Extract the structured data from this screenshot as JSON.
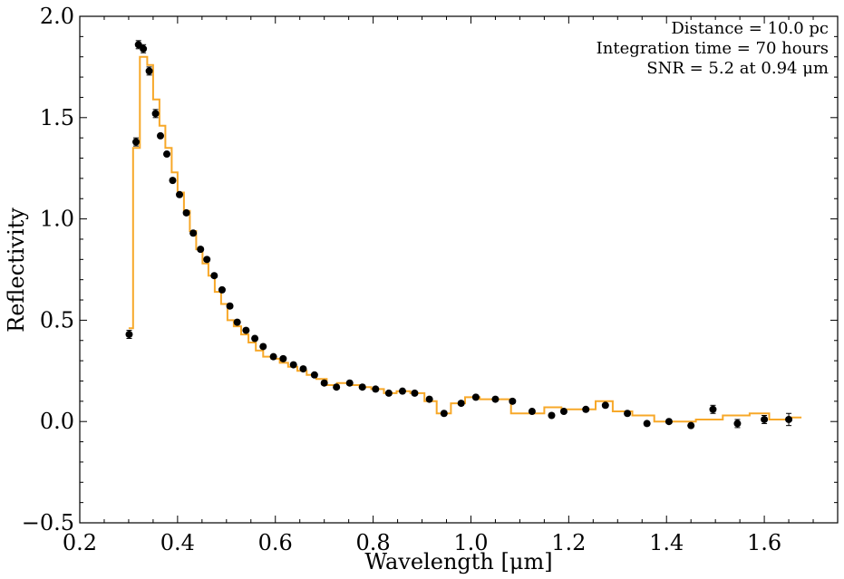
{
  "chart_data": {
    "type": "line",
    "title": "",
    "xlabel": "Wavelength [μm]",
    "ylabel": "Reflectivity",
    "xlim": [
      0.2,
      1.75
    ],
    "ylim": [
      -0.5,
      2.0
    ],
    "grid": false,
    "x_ticks": [
      0.2,
      0.4,
      0.6,
      0.8,
      1.0,
      1.2,
      1.4,
      1.6
    ],
    "x_tick_labels": [
      "0.2",
      "0.4",
      "0.6",
      "0.8",
      "1.0",
      "1.2",
      "1.4",
      "1.6"
    ],
    "y_ticks": [
      -0.5,
      0.0,
      0.5,
      1.0,
      1.5,
      2.0
    ],
    "y_tick_labels": [
      "−0.5",
      "0.0",
      "0.5",
      "1.0",
      "1.5",
      "2.0"
    ],
    "annotations": [
      "Distance = 10.0 pc",
      "Integration time = 70 hours",
      "SNR = 5.2 at 0.94 μm"
    ],
    "series": [
      {
        "style": "step",
        "color": "#f7a829",
        "x": [
          0.3,
          0.309,
          0.323,
          0.338,
          0.35,
          0.363,
          0.375,
          0.388,
          0.4,
          0.413,
          0.425,
          0.438,
          0.451,
          0.463,
          0.476,
          0.489,
          0.502,
          0.515,
          0.53,
          0.545,
          0.56,
          0.575,
          0.592,
          0.609,
          0.626,
          0.645,
          0.664,
          0.684,
          0.705,
          0.726,
          0.749,
          0.772,
          0.796,
          0.822,
          0.848,
          0.876,
          0.905,
          0.93,
          0.959,
          0.988,
          1.018,
          1.05,
          1.082,
          1.115,
          1.15,
          1.185,
          1.22,
          1.255,
          1.29,
          1.33,
          1.375,
          1.415,
          1.46,
          1.515,
          1.57,
          1.61,
          1.65
        ],
        "y": [
          0.46,
          1.35,
          1.8,
          1.76,
          1.59,
          1.46,
          1.35,
          1.23,
          1.13,
          1.04,
          0.94,
          0.85,
          0.78,
          0.72,
          0.64,
          0.58,
          0.5,
          0.47,
          0.43,
          0.39,
          0.35,
          0.32,
          0.31,
          0.29,
          0.27,
          0.25,
          0.23,
          0.21,
          0.18,
          0.19,
          0.18,
          0.17,
          0.16,
          0.14,
          0.15,
          0.14,
          0.1,
          0.04,
          0.09,
          0.12,
          0.11,
          0.11,
          0.04,
          0.04,
          0.07,
          0.06,
          0.06,
          0.1,
          0.05,
          0.03,
          0.0,
          0.0,
          0.01,
          0.03,
          0.04,
          0.01,
          0.02
        ]
      },
      {
        "style": "errorbar",
        "color": "#000000",
        "x": [
          0.301,
          0.315,
          0.32,
          0.33,
          0.342,
          0.355,
          0.365,
          0.378,
          0.39,
          0.404,
          0.418,
          0.432,
          0.447,
          0.46,
          0.475,
          0.491,
          0.507,
          0.522,
          0.54,
          0.558,
          0.575,
          0.596,
          0.616,
          0.637,
          0.657,
          0.68,
          0.7,
          0.725,
          0.752,
          0.778,
          0.805,
          0.832,
          0.86,
          0.885,
          0.915,
          0.945,
          0.98,
          1.01,
          1.05,
          1.085,
          1.125,
          1.165,
          1.19,
          1.235,
          1.275,
          1.32,
          1.36,
          1.405,
          1.45,
          1.495,
          1.545,
          1.6,
          1.65
        ],
        "y": [
          0.43,
          1.38,
          1.86,
          1.84,
          1.73,
          1.52,
          1.41,
          1.32,
          1.19,
          1.12,
          1.03,
          0.93,
          0.85,
          0.8,
          0.72,
          0.65,
          0.57,
          0.49,
          0.45,
          0.41,
          0.37,
          0.32,
          0.31,
          0.28,
          0.26,
          0.23,
          0.19,
          0.17,
          0.19,
          0.17,
          0.16,
          0.14,
          0.15,
          0.14,
          0.11,
          0.04,
          0.09,
          0.12,
          0.11,
          0.1,
          0.05,
          0.03,
          0.05,
          0.06,
          0.08,
          0.04,
          -0.01,
          0.0,
          -0.02,
          0.06,
          -0.01,
          0.01,
          0.01
        ],
        "err": [
          0.02,
          0.02,
          0.02,
          0.02,
          0.02,
          0.02,
          0.01,
          0.01,
          0.01,
          0.01,
          0.01,
          0.01,
          0.01,
          0.01,
          0.01,
          0.01,
          0.01,
          0.01,
          0.01,
          0.01,
          0.01,
          0.01,
          0.01,
          0.01,
          0.01,
          0.01,
          0.01,
          0.01,
          0.01,
          0.01,
          0.01,
          0.01,
          0.01,
          0.01,
          0.01,
          0.01,
          0.01,
          0.01,
          0.01,
          0.01,
          0.01,
          0.01,
          0.01,
          0.01,
          0.01,
          0.01,
          0.01,
          0.01,
          0.01,
          0.02,
          0.02,
          0.02,
          0.03
        ]
      }
    ]
  }
}
